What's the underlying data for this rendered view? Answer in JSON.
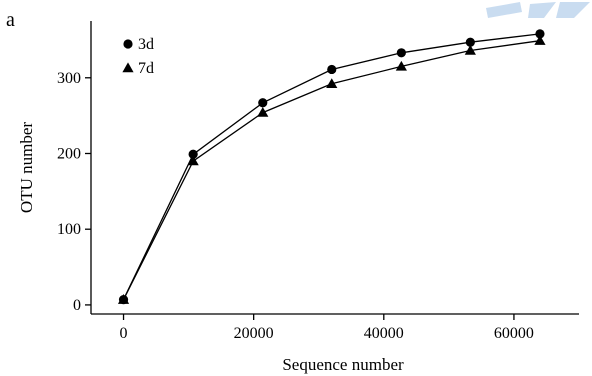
{
  "panel_label": "a",
  "chart_data": {
    "type": "line",
    "title": "",
    "xlabel": "Sequence number",
    "ylabel": "OTU number",
    "xlim": [
      -5000,
      70000
    ],
    "ylim": [
      -12,
      375
    ],
    "xticks": [
      0,
      20000,
      40000,
      60000
    ],
    "xtick_labels": [
      "0",
      "20000",
      "40000",
      "60000"
    ],
    "yticks": [
      0,
      100,
      200,
      300
    ],
    "ytick_labels": [
      "0",
      "100",
      "200",
      "300"
    ],
    "grid": false,
    "legend_position": "top-left",
    "series": [
      {
        "name": "3d",
        "marker": "circle",
        "color": "#000000",
        "x": [
          0,
          10700,
          21400,
          32000,
          42700,
          53300,
          64000
        ],
        "y": [
          7,
          199,
          267,
          311,
          333,
          347,
          358
        ]
      },
      {
        "name": "7d",
        "marker": "triangle",
        "color": "#000000",
        "x": [
          0,
          10700,
          21400,
          32000,
          42700,
          53300,
          64000
        ],
        "y": [
          7,
          190,
          254,
          292,
          315,
          336,
          349
        ]
      }
    ]
  },
  "watermark": {
    "color": "#c9dcf0"
  }
}
